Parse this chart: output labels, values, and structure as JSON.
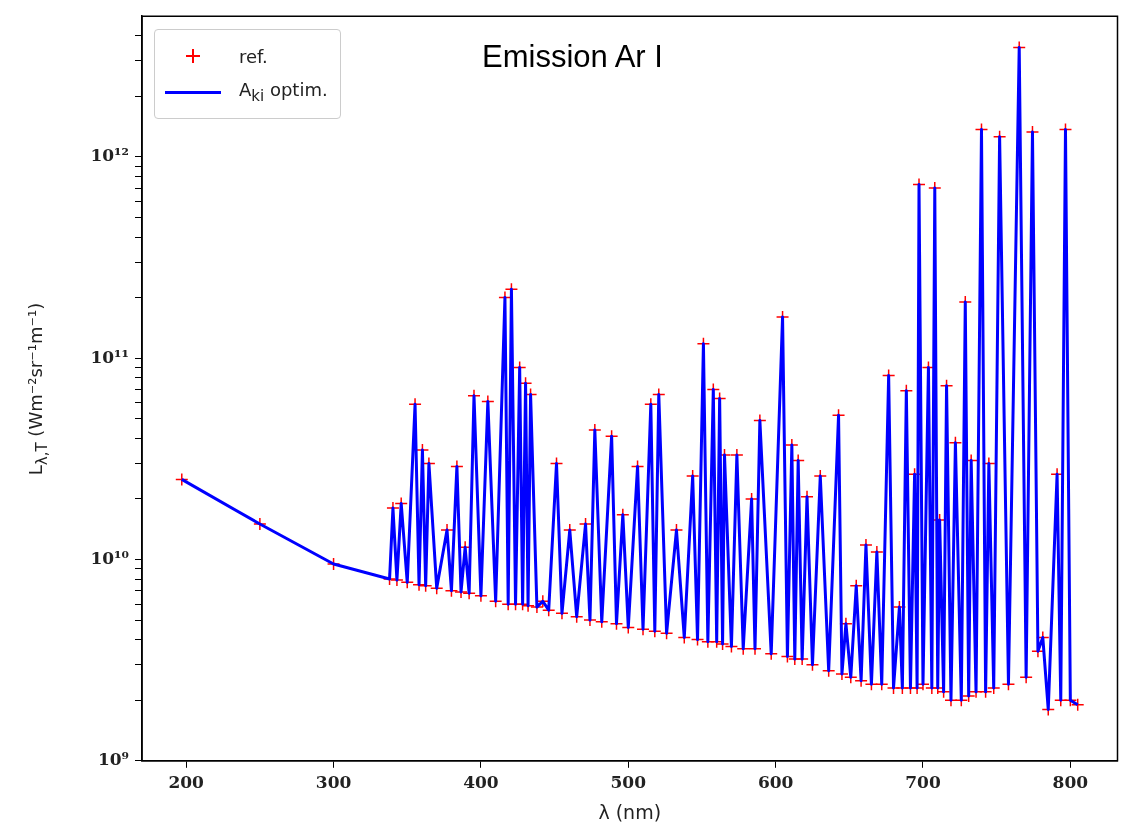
{
  "chart_data": {
    "type": "line",
    "title": "Emission Ar I",
    "xlabel": "λ (nm)",
    "ylabel": "L$_{λ,T}$ (Wm⁻²sr⁻¹m⁻¹)",
    "log": "y",
    "legend": "top left",
    "xlim": [
      170,
      832
    ],
    "xticks": [
      200,
      300,
      400,
      500,
      600,
      700,
      800
    ],
    "ylim": [
      1000000000,
      5000000000000
    ],
    "yticks": [
      {
        "value": 1000000000,
        "label": "10⁹"
      },
      {
        "value": 2000000000,
        "label": null
      },
      {
        "value": 3000000000,
        "label": null
      },
      {
        "value": 4000000000,
        "label": null
      },
      {
        "value": 5000000000,
        "label": null
      },
      {
        "value": 6000000000,
        "label": null
      },
      {
        "value": 7000000000,
        "label": null
      },
      {
        "value": 8000000000,
        "label": null
      },
      {
        "value": 9000000000,
        "label": null
      },
      {
        "value": 10000000000,
        "label": "10¹⁰"
      },
      {
        "value": 20000000000,
        "label": null
      },
      {
        "value": 30000000000,
        "label": null
      },
      {
        "value": 40000000000,
        "label": null
      },
      {
        "value": 50000000000,
        "label": null
      },
      {
        "value": 60000000000,
        "label": null
      },
      {
        "value": 70000000000,
        "label": null
      },
      {
        "value": 80000000000,
        "label": null
      },
      {
        "value": 90000000000,
        "label": null
      },
      {
        "value": 100000000000,
        "label": "10¹¹"
      },
      {
        "value": 200000000000,
        "label": null
      },
      {
        "value": 300000000000,
        "label": null
      },
      {
        "value": 400000000000,
        "label": null
      },
      {
        "value": 500000000000,
        "label": null
      },
      {
        "value": 600000000000,
        "label": null
      },
      {
        "value": 700000000000,
        "label": null
      },
      {
        "value": 800000000000,
        "label": null
      },
      {
        "value": 900000000000,
        "label": null
      },
      {
        "value": 1000000000000,
        "label": "10¹²"
      },
      {
        "value": 2000000000000,
        "label": null
      },
      {
        "value": 3000000000000,
        "label": null
      },
      {
        "value": 4000000000000,
        "label": null
      }
    ],
    "x": [
      197,
      250,
      300,
      338,
      340.3,
      343,
      345.9,
      350,
      355.3,
      358,
      360.3,
      362.5,
      364.7,
      370,
      377,
      380,
      383.7,
      386.5,
      389.3,
      392,
      395.3,
      400,
      404.7,
      410,
      416.3,
      418.5,
      420.7,
      423.5,
      426.3,
      428.3,
      430.3,
      432,
      433.7,
      438,
      442,
      446,
      451.3,
      455,
      460.3,
      465,
      471,
      474,
      477.3,
      482,
      488.7,
      492,
      496.3,
      500,
      506.3,
      510,
      515.3,
      518,
      520.7,
      526,
      532.7,
      538,
      543.7,
      547,
      551,
      554,
      557.7,
      560,
      562,
      564,
      565.3,
      570,
      573.7,
      578,
      583.7,
      586,
      589.3,
      597,
      604.7,
      608,
      611,
      613,
      615.3,
      618,
      621.3,
      625,
      630.3,
      636,
      642.7,
      645,
      647.7,
      651,
      654.7,
      658,
      661.3,
      665,
      668.7,
      672,
      676.7,
      680,
      684,
      686,
      688.7,
      691.5,
      694.3,
      696,
      697.3,
      700,
      703.7,
      706,
      708,
      710,
      711.3,
      714,
      716,
      719,
      722,
      726,
      728.7,
      731,
      732.7,
      736,
      739.7,
      742.5,
      744.7,
      748,
      752,
      758,
      765.3,
      770,
      774.3,
      778,
      781.3,
      785,
      791,
      793.5,
      796.7,
      800,
      805
    ],
    "series": [
      {
        "name": "ref.",
        "type": "scatter",
        "marker": "cross",
        "color": "#ff0000",
        "values": [
          25000000000.0,
          15000000000.0,
          9500000000.0,
          8000000000.0,
          18000000000.0,
          7900000000.0,
          19000000000.0,
          7700000000.0,
          59000000000.0,
          7500000000.0,
          35000000000.0,
          7400000000.0,
          30000000000.0,
          7200000000.0,
          14000000000.0,
          7000000000.0,
          29000000000.0,
          6900000000.0,
          11500000000.0,
          6800000000.0,
          65000000000.0,
          6600000000.0,
          61000000000.0,
          6200000000.0,
          200000000000.0,
          6000000000.0,
          220000000000.0,
          6000000000.0,
          90000000000.0,
          6000000000.0,
          75000000000.0,
          5900000000.0,
          66000000000.0,
          5800000000.0,
          6200000000.0,
          5600000000.0,
          30000000000.0,
          5400000000.0,
          14000000000.0,
          5200000000.0,
          15000000000.0,
          5000000000.0,
          44000000000.0,
          4900000000.0,
          41000000000.0,
          4800000000.0,
          16700000000.0,
          4600000000.0,
          29000000000.0,
          4500000000.0,
          59000000000.0,
          4400000000.0,
          66000000000.0,
          4300000000.0,
          14000000000.0,
          4100000000.0,
          26000000000.0,
          4000000000.0,
          118000000000.0,
          3900000000.0,
          70000000000.0,
          3900000000.0,
          63000000000.0,
          3800000000.0,
          33000000000.0,
          3700000000.0,
          33000000000.0,
          3600000000.0,
          20000000000.0,
          3600000000.0,
          49000000000.0,
          3400000000.0,
          160000000000.0,
          3300000000.0,
          37000000000.0,
          3200000000.0,
          31000000000.0,
          3200000000.0,
          20500000000.0,
          3000000000.0,
          26000000000.0,
          2800000000.0,
          52000000000.0,
          2700000000.0,
          4800000000.0,
          2600000000.0,
          7400000000.0,
          2500000000.0,
          11800000000.0,
          2400000000.0,
          10900000000.0,
          2400000000.0,
          82000000000.0,
          2300000000.0,
          5800000000.0,
          2300000000.0,
          69000000000.0,
          2300000000.0,
          26500000000.0,
          2300000000.0,
          730000000000.0,
          2400000000.0,
          90000000000.0,
          2300000000.0,
          700000000000.0,
          2300000000.0,
          15700000000.0,
          2200000000.0,
          73000000000.0,
          2000000000.0,
          38000000000.0,
          2000000000.0,
          190000000000.0,
          2100000000.0,
          31000000000.0,
          2200000000.0,
          1370000000000.0,
          2200000000.0,
          30000000000.0,
          2300000000.0,
          1260000000000.0,
          2400000000.0,
          3500000000000.0,
          2600000000.0,
          1330000000000.0,
          3500000000.0,
          4100000000.0,
          1800000000.0,
          26500000000.0,
          2000000000.0,
          1370000000000.0,
          2000000000.0,
          1900000000.0
        ]
      },
      {
        "name": "A$_{ki}$ optim.",
        "type": "line",
        "marker": "none",
        "line_style": "solid",
        "color": "#0000ff",
        "values": [
          25000000000.0,
          15000000000.0,
          9500000000.0,
          8000000000.0,
          18000000000.0,
          7900000000.0,
          19000000000.0,
          7700000000.0,
          59000000000.0,
          7500000000.0,
          35000000000.0,
          7400000000.0,
          30000000000.0,
          7200000000.0,
          14000000000.0,
          7000000000.0,
          29000000000.0,
          6900000000.0,
          11500000000.0,
          6800000000.0,
          65000000000.0,
          6600000000.0,
          61000000000.0,
          6200000000.0,
          200000000000.0,
          6000000000.0,
          220000000000.0,
          6000000000.0,
          90000000000.0,
          6000000000.0,
          75000000000.0,
          5900000000.0,
          66000000000.0,
          5800000000.0,
          6200000000.0,
          5600000000.0,
          30000000000.0,
          5400000000.0,
          14000000000.0,
          5200000000.0,
          15000000000.0,
          5000000000.0,
          44000000000.0,
          4900000000.0,
          41000000000.0,
          4800000000.0,
          16700000000.0,
          4600000000.0,
          29000000000.0,
          4500000000.0,
          59000000000.0,
          4400000000.0,
          66000000000.0,
          4300000000.0,
          14000000000.0,
          4100000000.0,
          26000000000.0,
          4000000000.0,
          118000000000.0,
          3900000000.0,
          70000000000.0,
          3900000000.0,
          63000000000.0,
          3800000000.0,
          33000000000.0,
          3700000000.0,
          33000000000.0,
          3600000000.0,
          20000000000.0,
          3600000000.0,
          49000000000.0,
          3400000000.0,
          160000000000.0,
          3300000000.0,
          37000000000.0,
          3200000000.0,
          31000000000.0,
          3200000000.0,
          20500000000.0,
          3000000000.0,
          26000000000.0,
          2800000000.0,
          52000000000.0,
          2700000000.0,
          4800000000.0,
          2600000000.0,
          7400000000.0,
          2500000000.0,
          11800000000.0,
          2400000000.0,
          10900000000.0,
          2400000000.0,
          82000000000.0,
          2300000000.0,
          5800000000.0,
          2300000000.0,
          69000000000.0,
          2300000000.0,
          26500000000.0,
          2300000000.0,
          730000000000.0,
          2400000000.0,
          90000000000.0,
          2300000000.0,
          700000000000.0,
          2300000000.0,
          15700000000.0,
          2200000000.0,
          73000000000.0,
          2000000000.0,
          38000000000.0,
          2000000000.0,
          190000000000.0,
          2100000000.0,
          31000000000.0,
          2200000000.0,
          1370000000000.0,
          2200000000.0,
          30000000000.0,
          2300000000.0,
          1260000000000.0,
          2400000000.0,
          3500000000000.0,
          2600000000.0,
          1330000000000.0,
          3500000000.0,
          4100000000.0,
          1800000000.0,
          26500000000.0,
          2000000000.0,
          1370000000000.0,
          2000000000.0,
          1900000000.0
        ]
      }
    ]
  }
}
